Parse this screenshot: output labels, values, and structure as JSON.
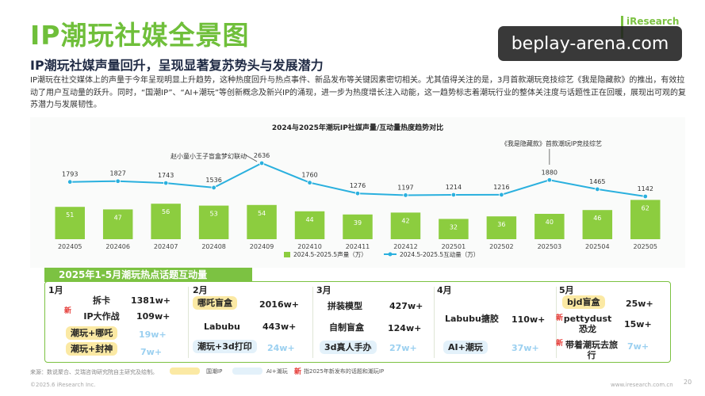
{
  "page": {
    "title": "IP潮玩社媒全景图",
    "subtitle": "IP潮玩社媒声量回升，呈现显著复苏势头与发展潜力",
    "paragraph": "IP潮玩在社交媒体上的声量于今年呈现明显上升趋势，这种热度回升与热点事件、新品发布等关键因素密切相关。尤其值得关注的是，3月首款潮玩竞技综艺《我是隐藏款》的推出，有效拉动了用户互动量的跃升。同时，“国潮IP”、“AI+潮玩”等创新概念及新兴IP的涌现，进一步为热度增长注入动能，这一趋势标志着潮玩行业的整体关注度与话题性正在回暖，展现出可观的复苏潜力与发展韧性。",
    "brand": "iResearch",
    "watermark": "beplay-arena.com"
  },
  "colors": {
    "title_green": "#6fbf3a",
    "bar_green": "#8ccd3f",
    "line_blue": "#2ab0de",
    "highlight_yellow": "#fbe9a4",
    "highlight_blue": "#e3f1fa",
    "new_red": "#e53935"
  },
  "chart_data": {
    "type": "bar",
    "title": "2024与2025年潮玩IP社媒声量/互动量热度趋势对比",
    "categories": [
      "202405",
      "202406",
      "202407",
      "202408",
      "202409",
      "202410",
      "202411",
      "202412",
      "202501",
      "202502",
      "202503",
      "202504",
      "202505"
    ],
    "series": [
      {
        "name": "2024.5-2025.5声量（万）",
        "type": "bar",
        "values": [
          51,
          47,
          56,
          53,
          54,
          44,
          39,
          42,
          32,
          36,
          40,
          46,
          62
        ]
      },
      {
        "name": "2024.5-2025.5互动量（万）",
        "type": "line",
        "values": [
          1793,
          1827,
          1743,
          1536,
          2636,
          1760,
          1276,
          1197,
          1214,
          1216,
          1880,
          1465,
          1142
        ]
      }
    ],
    "annotations": [
      {
        "category": "202409",
        "text": "赵小童小王子盲盒梦幻联动"
      },
      {
        "category": "202503",
        "text": "《我是隐藏款》首款潮玩IP竞技综艺"
      }
    ],
    "legend_placement": "bottom",
    "grid": false
  },
  "hot_topics": {
    "header": "2025年1-5月潮玩热点话题互动量",
    "months": [
      {
        "label": "1月",
        "items": [
          {
            "topic": "拆卡",
            "value": "1381w+",
            "new": false,
            "highlight": "none"
          },
          {
            "topic": "IP大作战",
            "value": "109w+",
            "new": true,
            "highlight": "none"
          },
          {
            "topic": "潮玩+哪吒",
            "value": "19w+",
            "new": false,
            "highlight": "yellow"
          },
          {
            "topic": "潮玩+封神",
            "value": "7w+",
            "new": false,
            "highlight": "yellow"
          }
        ]
      },
      {
        "label": "2月",
        "items": [
          {
            "topic": "哪吒盲盒",
            "value": "2016w+",
            "new": false,
            "highlight": "yellow"
          },
          {
            "topic": "Labubu",
            "value": "443w+",
            "new": false,
            "highlight": "none"
          },
          {
            "topic": "潮玩+3d打印",
            "value": "24w+",
            "new": false,
            "highlight": "blue"
          }
        ]
      },
      {
        "label": "3月",
        "items": [
          {
            "topic": "拼装模型",
            "value": "427w+",
            "new": false,
            "highlight": "none"
          },
          {
            "topic": "自制盲盒",
            "value": "124w+",
            "new": false,
            "highlight": "none"
          },
          {
            "topic": "3d真人手办",
            "value": "27w+",
            "new": false,
            "highlight": "blue"
          }
        ]
      },
      {
        "label": "4月",
        "items": [
          {
            "topic": "Labubu搪胶",
            "value": "110w+",
            "new": false,
            "highlight": "none"
          },
          {
            "topic": "AI+潮玩",
            "value": "37w+",
            "new": false,
            "highlight": "blue"
          }
        ]
      },
      {
        "label": "5月",
        "items": [
          {
            "topic": "bjd盲盒",
            "value": "25w+",
            "new": false,
            "highlight": "yellow"
          },
          {
            "topic": "pettydust恐龙",
            "value": "15w+",
            "new": true,
            "highlight": "none"
          },
          {
            "topic": "带着潮玩去旅行",
            "value": "7w+",
            "new": true,
            "highlight": "none"
          }
        ]
      }
    ]
  },
  "footer": {
    "source": "来源：数说聚合、艾瑞咨询研究院自主研究及绘制。",
    "legend_guochao": "国潮IP",
    "legend_ai": "AI+潮玩",
    "legend_new_mark": "新",
    "legend_new_text": "指2025年新发布的话题和潮玩IP",
    "copyright": "©2025.6 iResearch Inc.",
    "site": "www.iresearch.com.cn",
    "page_number": "20"
  }
}
